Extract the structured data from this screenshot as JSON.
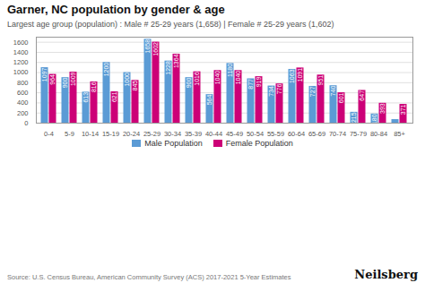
{
  "chart_data": {
    "type": "bar",
    "title": "Garner, NC population by gender & age",
    "subtitle": "Largest age group (population) : Male # 25-29 years (1,658) | Female # 25-29 years (1,602)",
    "categories": [
      "0-4",
      "5-9",
      "10-14",
      "15-19",
      "20-24",
      "25-29",
      "30-34",
      "35-39",
      "40-44",
      "45-49",
      "50-54",
      "55-59",
      "60-64",
      "65-69",
      "70-74",
      "75-79",
      "80-84",
      "85+"
    ],
    "series": [
      {
        "name": "Male Population",
        "color": "#5b9bd5",
        "values": [
          1097,
          900,
          613,
          1200,
          1000,
          1658,
          1228,
          900,
          564,
          1180,
          877,
          734,
          1063,
          727,
          740,
          215,
          180,
          70
        ],
        "value_labels": [
          "1097",
          "900",
          "613",
          "1200",
          "1000",
          "1658",
          "1228",
          "900",
          "564",
          "1180",
          "877",
          "734",
          "1063",
          "727",
          "740",
          "215",
          "180",
          null
        ]
      },
      {
        "name": "Female Population",
        "color": "#cc0077",
        "values": [
          964,
          1009,
          816,
          621,
          845,
          1602,
          1364,
          1016,
          1040,
          1040,
          919,
          776,
          1091,
          951,
          601,
          647,
          393,
          371
        ],
        "value_labels": [
          "964",
          "1009",
          "816",
          "621",
          "845",
          "1602",
          "1364",
          "1016",
          "1040",
          "1040",
          "919",
          "776",
          "1091",
          "951",
          "601",
          "647",
          "393",
          "371"
        ]
      }
    ],
    "ylim": [
      0,
      1700
    ],
    "yticks": [
      0,
      200,
      400,
      600,
      800,
      1000,
      1200,
      1400,
      1600
    ],
    "grid": true,
    "legend": "bottom",
    "data_labels": true,
    "annotations": [
      "Source: U.S. Census Bureau, American Community Survey (ACS) 2017-2021 5-Year Estimates",
      "Neilsberg"
    ]
  }
}
